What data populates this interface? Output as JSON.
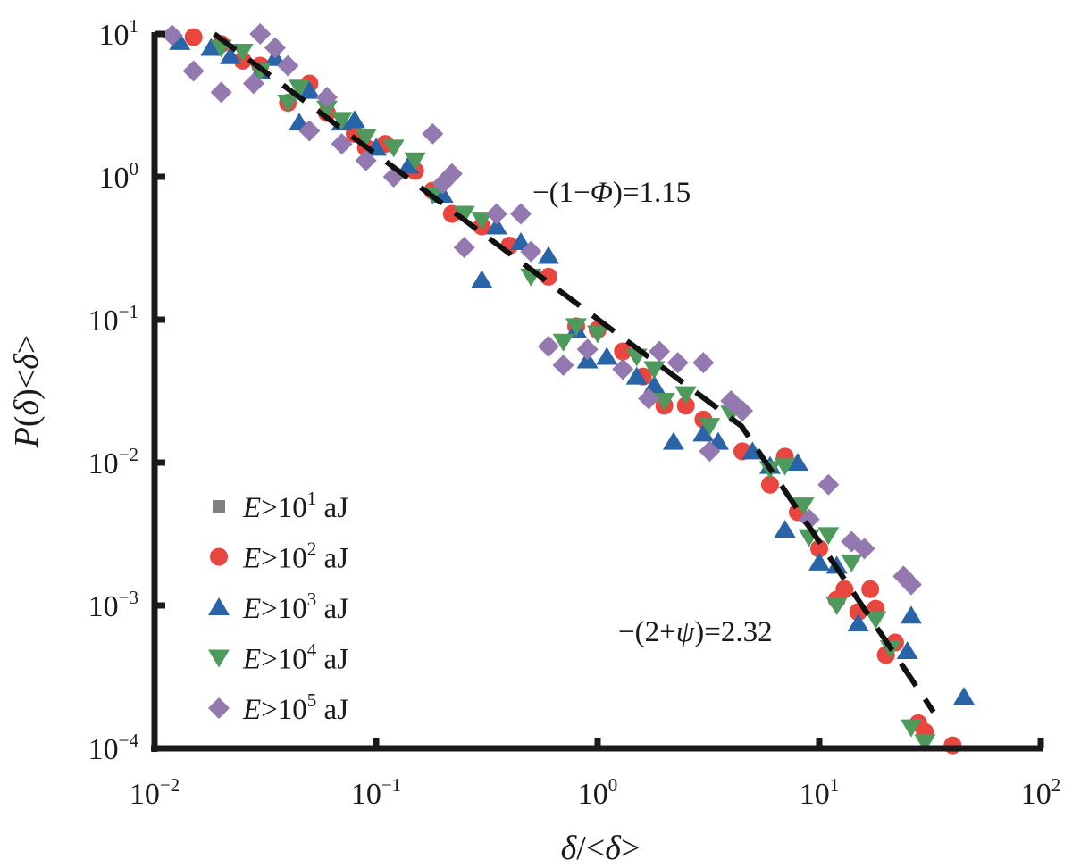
{
  "chart_data": {
    "type": "scatter",
    "xscale": "log",
    "yscale": "log",
    "xlim": [
      0.01,
      100
    ],
    "ylim": [
      0.0001,
      10
    ],
    "xlabel": {
      "italic": "δ",
      "rest": "/<",
      "italic2": "δ",
      "end": ">"
    },
    "ylabel": {
      "p": "P",
      "open": "(",
      "italic": "δ",
      "close": ")<",
      "italic2": "δ",
      "end": ">"
    },
    "xticks": [
      {
        "value": 0.01,
        "base": "10",
        "exp": "−2"
      },
      {
        "value": 0.1,
        "base": "10",
        "exp": "−1"
      },
      {
        "value": 1,
        "base": "10",
        "exp": "0"
      },
      {
        "value": 10,
        "base": "10",
        "exp": "1"
      },
      {
        "value": 100,
        "base": "10",
        "exp": "2"
      }
    ],
    "yticks": [
      {
        "value": 10,
        "base": "10",
        "exp": "1"
      },
      {
        "value": 1,
        "base": "10",
        "exp": "0"
      },
      {
        "value": 0.1,
        "base": "10",
        "exp": "−1"
      },
      {
        "value": 0.01,
        "base": "10",
        "exp": "−2"
      },
      {
        "value": 0.001,
        "base": "10",
        "exp": "−3"
      },
      {
        "value": 0.0001,
        "base": "10",
        "exp": "−4"
      }
    ],
    "grid": false,
    "legend_position": "bottom-left",
    "fit_line": {
      "style": "dashed",
      "points": [
        [
          0.0186,
          10
        ],
        [
          4.46,
          0.018
        ],
        [
          32.8,
          0.00018
        ]
      ]
    },
    "annotations": [
      {
        "text_pre": "−(1−",
        "text_italic": "Φ",
        "text_post": ")=1.15",
        "at": [
          0.45,
          1.0
        ]
      },
      {
        "text_pre": "−(2+",
        "text_italic": "ψ",
        "text_post": ")=2.32",
        "at": [
          0.34,
          0.0013
        ]
      }
    ],
    "series": [
      {
        "name": "E>10^1 aJ",
        "label": {
          "e": "E",
          "mid": ">10",
          "exp": "1",
          "unit": " aJ"
        },
        "marker": "square",
        "color": "#808080",
        "points": []
      },
      {
        "name": "E>10^2 aJ",
        "label": {
          "e": "E",
          "mid": ">10",
          "exp": "2",
          "unit": " aJ"
        },
        "marker": "circle",
        "color": "#e8463f",
        "points": [
          [
            0.015,
            9.5
          ],
          [
            0.02,
            8.5
          ],
          [
            0.025,
            6.5
          ],
          [
            0.03,
            6
          ],
          [
            0.04,
            3.3
          ],
          [
            0.05,
            4.5
          ],
          [
            0.06,
            2.8
          ],
          [
            0.08,
            2
          ],
          [
            0.09,
            1.6
          ],
          [
            0.11,
            1.7
          ],
          [
            0.15,
            1.1
          ],
          [
            0.18,
            0.8
          ],
          [
            0.22,
            0.55
          ],
          [
            0.3,
            0.45
          ],
          [
            0.4,
            0.33
          ],
          [
            0.6,
            0.2
          ],
          [
            0.8,
            0.09
          ],
          [
            1.0,
            0.085
          ],
          [
            1.3,
            0.06
          ],
          [
            1.6,
            0.04
          ],
          [
            2.0,
            0.025
          ],
          [
            2.5,
            0.025
          ],
          [
            3.0,
            0.02
          ],
          [
            4.5,
            0.012
          ],
          [
            6.0,
            0.007
          ],
          [
            7.0,
            0.011
          ],
          [
            8,
            0.0045
          ],
          [
            10,
            0.0025
          ],
          [
            12,
            0.0011
          ],
          [
            13,
            0.0013
          ],
          [
            15,
            0.0009
          ],
          [
            17,
            0.0013
          ],
          [
            18,
            0.00095
          ],
          [
            20,
            0.00045
          ],
          [
            22,
            0.00055
          ],
          [
            28,
            0.00015
          ],
          [
            30,
            0.00013
          ],
          [
            40,
            0.000105
          ]
        ]
      },
      {
        "name": "E>10^3 aJ",
        "label": {
          "e": "E",
          "mid": ">10",
          "exp": "3",
          "unit": " aJ"
        },
        "marker": "triangle-up",
        "color": "#2a64a8",
        "points": [
          [
            0.013,
            8.8
          ],
          [
            0.018,
            8
          ],
          [
            0.022,
            7
          ],
          [
            0.03,
            5.5
          ],
          [
            0.035,
            6.8
          ],
          [
            0.045,
            2.4
          ],
          [
            0.05,
            4
          ],
          [
            0.07,
            2.4
          ],
          [
            0.08,
            2.5
          ],
          [
            0.1,
            1.6
          ],
          [
            0.14,
            1.2
          ],
          [
            0.2,
            0.75
          ],
          [
            0.3,
            0.19
          ],
          [
            0.35,
            0.45
          ],
          [
            0.45,
            0.35
          ],
          [
            0.6,
            0.28
          ],
          [
            0.8,
            0.085
          ],
          [
            0.9,
            0.052
          ],
          [
            1.1,
            0.055
          ],
          [
            1.5,
            0.04
          ],
          [
            1.8,
            0.035
          ],
          [
            2.2,
            0.014
          ],
          [
            3,
            0.016
          ],
          [
            3.5,
            0.014
          ],
          [
            5,
            0.012
          ],
          [
            6,
            0.0095
          ],
          [
            8,
            0.01
          ],
          [
            7,
            0.0034
          ],
          [
            10,
            0.002
          ],
          [
            12,
            0.0019
          ],
          [
            15,
            0.00075
          ],
          [
            25,
            0.00048
          ],
          [
            26,
            0.00085
          ],
          [
            45,
            0.00023
          ]
        ]
      },
      {
        "name": "E>10^4 aJ",
        "label": {
          "e": "E",
          "mid": ">10",
          "exp": "4",
          "unit": " aJ"
        },
        "marker": "triangle-down",
        "color": "#4e9a5c",
        "points": [
          [
            0.02,
            8
          ],
          [
            0.025,
            7.5
          ],
          [
            0.03,
            5.5
          ],
          [
            0.04,
            3.3
          ],
          [
            0.045,
            4.2
          ],
          [
            0.06,
            3
          ],
          [
            0.07,
            2.5
          ],
          [
            0.09,
            1.9
          ],
          [
            0.12,
            1.6
          ],
          [
            0.15,
            1.3
          ],
          [
            0.18,
            0.75
          ],
          [
            0.25,
            0.55
          ],
          [
            0.3,
            0.5
          ],
          [
            0.5,
            0.2
          ],
          [
            0.7,
            0.07
          ],
          [
            0.8,
            0.09
          ],
          [
            1.0,
            0.08
          ],
          [
            1.5,
            0.055
          ],
          [
            1.8,
            0.045
          ],
          [
            2.0,
            0.027
          ],
          [
            2.5,
            0.03
          ],
          [
            3.2,
            0.018
          ],
          [
            4,
            0.022
          ],
          [
            6,
            0.009
          ],
          [
            7,
            0.0095
          ],
          [
            8.5,
            0.005
          ],
          [
            9,
            0.003
          ],
          [
            11,
            0.0031
          ],
          [
            12,
            0.001
          ],
          [
            14,
            0.002
          ],
          [
            18,
            0.0008
          ],
          [
            21,
            0.0005
          ],
          [
            26,
            0.00014
          ],
          [
            30,
            0.00011
          ]
        ]
      },
      {
        "name": "E>10^5 aJ",
        "label": {
          "e": "E",
          "mid": ">10",
          "exp": "5",
          "unit": " aJ"
        },
        "marker": "diamond",
        "color": "#9478b0",
        "points": [
          [
            0.012,
            9.8
          ],
          [
            0.015,
            5.5
          ],
          [
            0.02,
            3.9
          ],
          [
            0.028,
            4.5
          ],
          [
            0.03,
            10
          ],
          [
            0.035,
            8
          ],
          [
            0.04,
            6
          ],
          [
            0.05,
            2.1
          ],
          [
            0.06,
            3.6
          ],
          [
            0.07,
            1.7
          ],
          [
            0.09,
            1.3
          ],
          [
            0.12,
            1
          ],
          [
            0.18,
            2
          ],
          [
            0.2,
            0.9
          ],
          [
            0.22,
            1.05
          ],
          [
            0.25,
            0.32
          ],
          [
            0.35,
            0.55
          ],
          [
            0.45,
            0.55
          ],
          [
            0.5,
            0.3
          ],
          [
            0.6,
            0.065
          ],
          [
            0.7,
            0.048
          ],
          [
            0.9,
            0.062
          ],
          [
            1.3,
            0.045
          ],
          [
            1.7,
            0.028
          ],
          [
            1.9,
            0.06
          ],
          [
            2.3,
            0.05
          ],
          [
            3.0,
            0.05
          ],
          [
            4.0,
            0.027
          ],
          [
            4.5,
            0.023
          ],
          [
            3.2,
            0.012
          ],
          [
            9,
            0.004
          ],
          [
            11,
            0.007
          ],
          [
            14,
            0.0028
          ],
          [
            16,
            0.0025
          ],
          [
            24,
            0.0016
          ],
          [
            26,
            0.0014
          ]
        ]
      }
    ]
  }
}
